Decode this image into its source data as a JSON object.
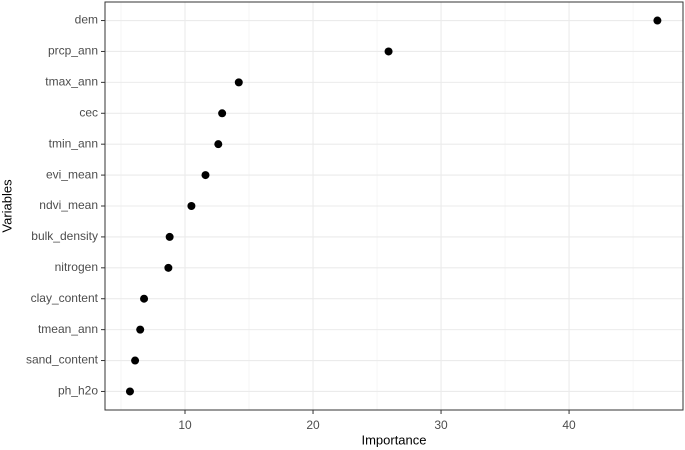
{
  "chart_data": {
    "type": "dot",
    "x_label": "Importance",
    "y_label": "Variables",
    "categories": [
      "dem",
      "prcp_ann",
      "tmax_ann",
      "cec",
      "tmin_ann",
      "evi_mean",
      "ndvi_mean",
      "bulk_density",
      "nitrogen",
      "clay_content",
      "tmean_ann",
      "sand_content",
      "ph_h2o"
    ],
    "values": [
      46.9,
      25.9,
      14.2,
      12.9,
      12.6,
      11.6,
      10.5,
      8.8,
      8.7,
      6.8,
      6.5,
      6.1,
      5.7
    ],
    "color": "#000000",
    "xlim": [
      3.75,
      48.9
    ],
    "xticks": [
      10,
      20,
      30,
      40
    ],
    "x_minor_gridlines": [
      5,
      15,
      25,
      35,
      45
    ],
    "grid": true
  }
}
